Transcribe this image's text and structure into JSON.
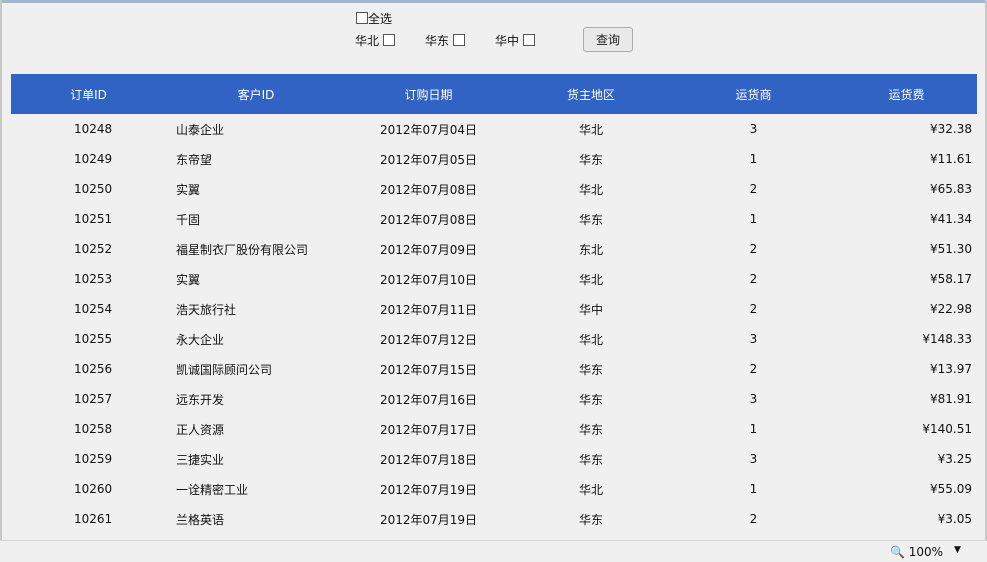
{
  "filters": {
    "select_all": "全选",
    "regions": [
      "华北",
      "华东",
      "华中"
    ],
    "query_button": "查询"
  },
  "table": {
    "headers": [
      "订单ID",
      "客户ID",
      "订购日期",
      "货主地区",
      "运货商",
      "运货费"
    ],
    "rows": [
      [
        "10248",
        "山泰企业",
        "2012年07月04日",
        "华北",
        "3",
        "¥32.38"
      ],
      [
        "10249",
        "东帝望",
        "2012年07月05日",
        "华东",
        "1",
        "¥11.61"
      ],
      [
        "10250",
        "实翼",
        "2012年07月08日",
        "华北",
        "2",
        "¥65.83"
      ],
      [
        "10251",
        "千固",
        "2012年07月08日",
        "华东",
        "1",
        "¥41.34"
      ],
      [
        "10252",
        "福星制衣厂股份有限公司",
        "2012年07月09日",
        "东北",
        "2",
        "¥51.30"
      ],
      [
        "10253",
        "实翼",
        "2012年07月10日",
        "华北",
        "2",
        "¥58.17"
      ],
      [
        "10254",
        "浩天旅行社",
        "2012年07月11日",
        "华中",
        "2",
        "¥22.98"
      ],
      [
        "10255",
        "永大企业",
        "2012年07月12日",
        "华北",
        "3",
        "¥148.33"
      ],
      [
        "10256",
        "凯诚国际顾问公司",
        "2012年07月15日",
        "华东",
        "2",
        "¥13.97"
      ],
      [
        "10257",
        "远东开发",
        "2012年07月16日",
        "华东",
        "3",
        "¥81.91"
      ],
      [
        "10258",
        "正人资源",
        "2012年07月17日",
        "华东",
        "1",
        "¥140.51"
      ],
      [
        "10259",
        "三捷实业",
        "2012年07月18日",
        "华东",
        "3",
        "¥3.25"
      ],
      [
        "10260",
        "一诠精密工业",
        "2012年07月19日",
        "华北",
        "1",
        "¥55.09"
      ],
      [
        "10261",
        "兰格英语",
        "2012年07月19日",
        "华东",
        "2",
        "¥3.05"
      ]
    ]
  },
  "status": {
    "zoom": "100%",
    "header_color": "#3163c5"
  }
}
